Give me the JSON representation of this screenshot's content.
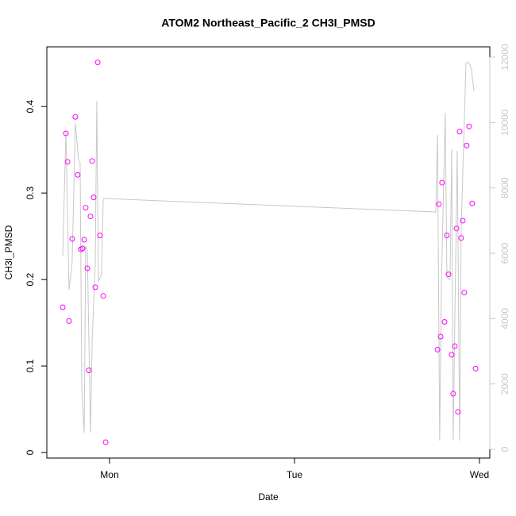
{
  "chart_data": {
    "type": "scatter",
    "title": "ATOM2 Northeast_Pacific_2 CH3I_PMSD",
    "x_label": "Date",
    "y_label": "CH3I_PMSD",
    "xlim": [
      0.661,
      3.056
    ],
    "xticks": [
      {
        "value": 1,
        "label": "Mon"
      },
      {
        "value": 2,
        "label": "Tue"
      },
      {
        "value": 3,
        "label": "Wed"
      }
    ],
    "ylim": [
      -0.0064,
      0.469
    ],
    "yticks": [
      0,
      0.1,
      0.2,
      0.3,
      0.4
    ],
    "y2lim": [
      -267,
      12316
    ],
    "y2ticks": [
      0,
      2000,
      4000,
      6000,
      8000,
      10000,
      12000
    ],
    "y2_color": "#c8c8c8",
    "series": [
      {
        "type": "scatter",
        "color": "#ff00ff",
        "x": [
          0.747,
          0.764,
          0.773,
          0.781,
          0.798,
          0.815,
          0.828,
          0.845,
          0.854,
          0.863,
          0.871,
          0.88,
          0.888,
          0.897,
          0.906,
          0.914,
          0.923,
          0.936,
          0.948,
          0.966,
          0.979,
          2.773,
          2.781,
          2.79,
          2.798,
          2.811,
          2.824,
          2.833,
          2.85,
          2.858,
          2.867,
          2.876,
          2.884,
          2.893,
          2.901,
          2.91,
          2.918,
          2.931,
          2.944,
          2.961,
          2.979
        ],
        "values": [
          0.168,
          0.369,
          0.336,
          0.152,
          0.247,
          0.388,
          0.321,
          0.235,
          0.236,
          0.246,
          0.283,
          0.213,
          0.095,
          0.273,
          0.337,
          0.295,
          0.191,
          0.451,
          0.251,
          0.181,
          0.012,
          0.119,
          0.287,
          0.134,
          0.312,
          0.151,
          0.251,
          0.206,
          0.113,
          0.068,
          0.123,
          0.259,
          0.047,
          0.371,
          0.248,
          0.268,
          0.185,
          0.355,
          0.377,
          0.288,
          0.097
        ]
      },
      {
        "type": "line",
        "axis": "y2",
        "color": "#c8c8c8",
        "x": [
          0.747,
          0.764,
          0.781,
          0.798,
          0.815,
          0.833,
          0.841,
          0.85,
          0.863,
          0.871,
          0.88,
          0.897,
          0.906,
          0.923,
          0.931,
          0.94,
          0.957,
          0.966,
          0.97,
          2.764,
          2.773,
          2.785,
          2.794,
          2.815,
          2.824,
          2.841,
          2.85,
          2.858,
          2.867,
          2.88,
          2.893,
          2.901,
          2.914,
          2.927,
          2.94,
          2.957,
          2.97
        ],
        "values": [
          5927,
          9740,
          4882,
          5732,
          9983,
          8817,
          8769,
          1846,
          510,
          6218,
          6097,
          510,
          3303,
          5732,
          10663,
          5125,
          5368,
          7675,
          7675,
          7262,
          9619,
          267,
          4882,
          10299,
          5246,
          5198,
          9181,
          267,
          4032,
          9133,
          267,
          6704,
          9254,
          11805,
          11853,
          11635,
          10954
        ]
      }
    ]
  }
}
